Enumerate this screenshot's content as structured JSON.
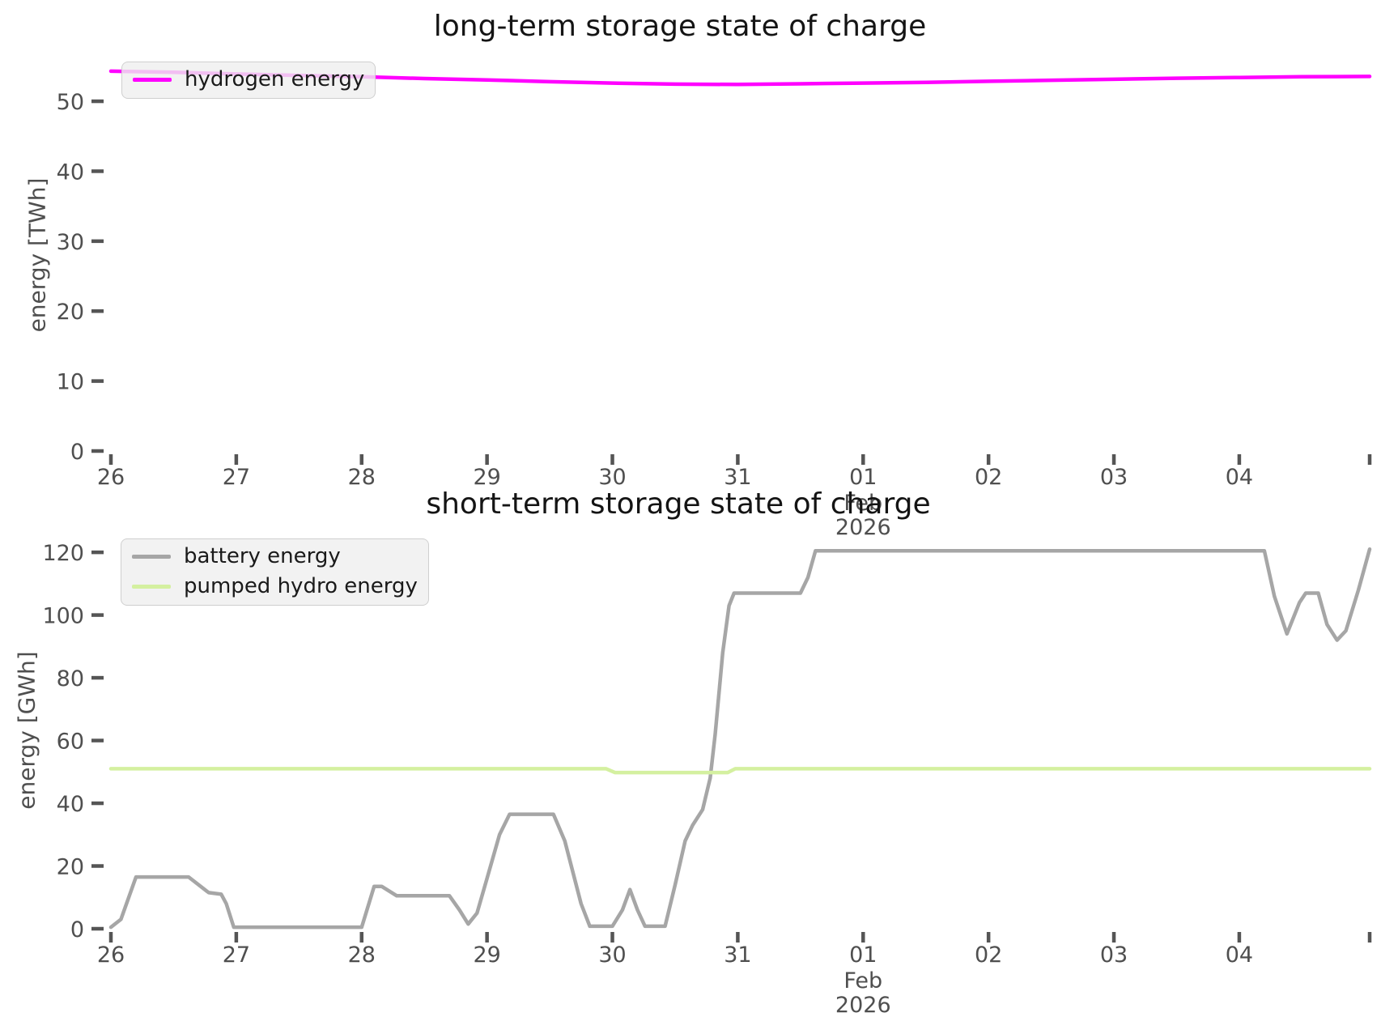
{
  "figure": {
    "background": "#ffffff"
  },
  "text_colors": {
    "title": "#141414",
    "ticks": "#4f4f4f"
  },
  "chart_data": [
    {
      "id": "long-term-storage-chart",
      "type": "line",
      "title": "long-term storage state of charge",
      "ylabel": "energy [TWh]",
      "xlabel": "",
      "ylim": [
        0,
        57.3
      ],
      "xlim": [
        26,
        36.04
      ],
      "grid": false,
      "legend": {
        "position": "upper left",
        "entries": [
          {
            "name": "hydrogen energy",
            "color": "#ff00ff"
          }
        ]
      },
      "yticks": [
        {
          "v": 0,
          "label": "0"
        },
        {
          "v": 10,
          "label": "10"
        },
        {
          "v": 20,
          "label": "20"
        },
        {
          "v": 30,
          "label": "30"
        },
        {
          "v": 40,
          "label": "40"
        },
        {
          "v": 50,
          "label": "50"
        }
      ],
      "xticks": [
        {
          "v": 26,
          "label": "26"
        },
        {
          "v": 27,
          "label": "27"
        },
        {
          "v": 28,
          "label": "28"
        },
        {
          "v": 29,
          "label": "29"
        },
        {
          "v": 30,
          "label": "30"
        },
        {
          "v": 31,
          "label": "31"
        },
        {
          "v": 32,
          "label": "01"
        },
        {
          "v": 33,
          "label": "02"
        },
        {
          "v": 34,
          "label": "03"
        },
        {
          "v": 35,
          "label": "04"
        },
        {
          "v": 36.04,
          "label": ""
        }
      ],
      "x_period_label": {
        "v": 32,
        "lines": [
          "Feb",
          "2026"
        ]
      },
      "series": [
        {
          "name": "hydrogen energy",
          "color": "#ff00ff",
          "points": [
            [
              26.0,
              54.3
            ],
            [
              26.5,
              54.15
            ],
            [
              27.0,
              53.9
            ],
            [
              27.5,
              53.7
            ],
            [
              28.0,
              53.5
            ],
            [
              28.5,
              53.25
            ],
            [
              29.0,
              53.05
            ],
            [
              29.5,
              52.8
            ],
            [
              30.0,
              52.6
            ],
            [
              30.5,
              52.45
            ],
            [
              31.0,
              52.4
            ],
            [
              31.5,
              52.5
            ],
            [
              32.0,
              52.6
            ],
            [
              32.5,
              52.7
            ],
            [
              33.0,
              52.85
            ],
            [
              33.5,
              53.0
            ],
            [
              34.0,
              53.15
            ],
            [
              34.5,
              53.3
            ],
            [
              35.0,
              53.4
            ],
            [
              35.5,
              53.5
            ],
            [
              36.04,
              53.55
            ]
          ]
        }
      ]
    },
    {
      "id": "short-term-storage-chart",
      "type": "line",
      "title": "short-term storage state of charge",
      "ylabel": "energy [GWh]",
      "xlabel": "",
      "ylim": [
        0,
        127
      ],
      "xlim": [
        26,
        36.04
      ],
      "grid": false,
      "legend": {
        "position": "upper left",
        "entries": [
          {
            "name": "battery energy",
            "color": "#a6a6a6"
          },
          {
            "name": "pumped hydro energy",
            "color": "#d4f0a0"
          }
        ]
      },
      "yticks": [
        {
          "v": 0,
          "label": "0"
        },
        {
          "v": 20,
          "label": "20"
        },
        {
          "v": 40,
          "label": "40"
        },
        {
          "v": 60,
          "label": "60"
        },
        {
          "v": 80,
          "label": "80"
        },
        {
          "v": 100,
          "label": "100"
        },
        {
          "v": 120,
          "label": "120"
        }
      ],
      "xticks": [
        {
          "v": 26,
          "label": "26"
        },
        {
          "v": 27,
          "label": "27"
        },
        {
          "v": 28,
          "label": "28"
        },
        {
          "v": 29,
          "label": "29"
        },
        {
          "v": 30,
          "label": "30"
        },
        {
          "v": 31,
          "label": "31"
        },
        {
          "v": 32,
          "label": "01"
        },
        {
          "v": 33,
          "label": "02"
        },
        {
          "v": 34,
          "label": "03"
        },
        {
          "v": 35,
          "label": "04"
        },
        {
          "v": 36.04,
          "label": ""
        }
      ],
      "x_period_label": {
        "v": 32,
        "lines": [
          "Feb",
          "2026"
        ]
      },
      "series": [
        {
          "name": "battery energy",
          "color": "#a6a6a6",
          "points": [
            [
              26.0,
              0.5
            ],
            [
              26.08,
              3
            ],
            [
              26.2,
              16.5
            ],
            [
              26.62,
              16.5
            ],
            [
              26.78,
              11.5
            ],
            [
              26.88,
              11
            ],
            [
              26.92,
              8
            ],
            [
              26.98,
              0.5
            ],
            [
              28.0,
              0.5
            ],
            [
              28.1,
              13.5
            ],
            [
              28.16,
              13.5
            ],
            [
              28.28,
              10.5
            ],
            [
              28.7,
              10.5
            ],
            [
              28.78,
              6
            ],
            [
              28.85,
              1.5
            ],
            [
              28.92,
              5
            ],
            [
              29.0,
              16
            ],
            [
              29.1,
              30
            ],
            [
              29.18,
              36.5
            ],
            [
              29.53,
              36.5
            ],
            [
              29.62,
              28
            ],
            [
              29.75,
              8
            ],
            [
              29.82,
              0.8
            ],
            [
              30.0,
              0.8
            ],
            [
              30.08,
              6
            ],
            [
              30.14,
              12.5
            ],
            [
              30.2,
              6
            ],
            [
              30.26,
              0.8
            ],
            [
              30.42,
              0.8
            ],
            [
              30.5,
              14
            ],
            [
              30.58,
              28
            ],
            [
              30.64,
              33
            ],
            [
              30.72,
              38
            ],
            [
              30.78,
              48
            ],
            [
              30.82,
              62
            ],
            [
              30.88,
              88
            ],
            [
              30.93,
              103
            ],
            [
              30.97,
              107
            ],
            [
              31.5,
              107
            ],
            [
              31.56,
              112
            ],
            [
              31.62,
              120.5
            ],
            [
              35.2,
              120.5
            ],
            [
              35.28,
              106
            ],
            [
              35.38,
              94
            ],
            [
              35.48,
              104
            ],
            [
              35.53,
              107
            ],
            [
              35.63,
              107
            ],
            [
              35.7,
              97
            ],
            [
              35.78,
              92
            ],
            [
              35.85,
              95
            ],
            [
              35.95,
              108
            ],
            [
              36.04,
              121
            ]
          ]
        },
        {
          "name": "pumped hydro energy",
          "color": "#d4f0a0",
          "points": [
            [
              26.0,
              51
            ],
            [
              29.95,
              51
            ],
            [
              30.02,
              49.8
            ],
            [
              30.92,
              49.8
            ],
            [
              30.98,
              51
            ],
            [
              36.04,
              51
            ]
          ]
        }
      ]
    }
  ]
}
